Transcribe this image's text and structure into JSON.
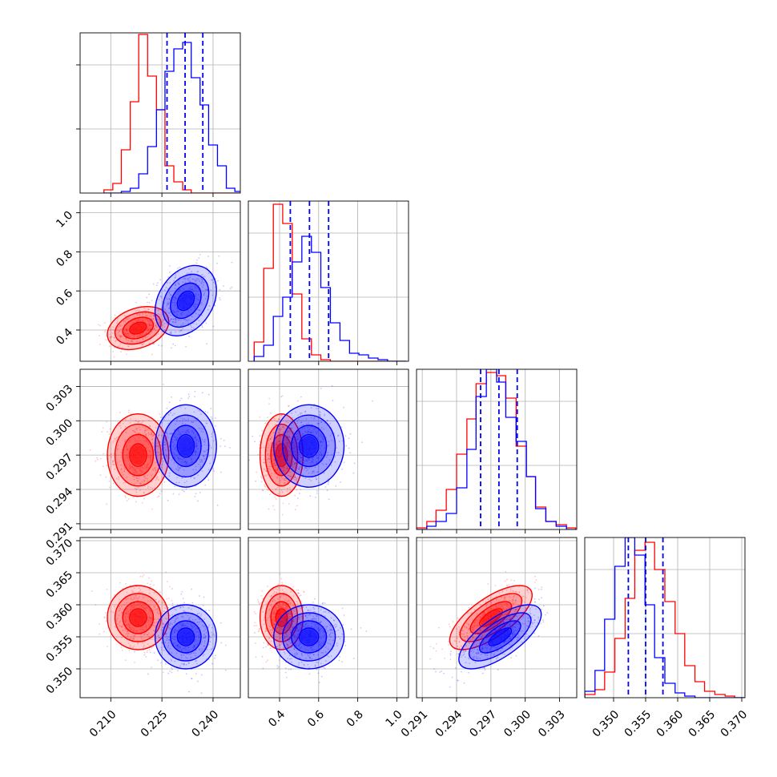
{
  "colors": {
    "series_a": "#ff0000",
    "series_b": "#0000ff",
    "grid": "#b0b0b0",
    "axes": "#000000"
  },
  "chart_data": {
    "type": "corner",
    "grid": true,
    "parameters": [
      {
        "ticks": [
          0.21,
          0.225,
          0.24
        ],
        "tick_labels": [
          "0.210",
          "0.225",
          "0.240"
        ],
        "range": [
          0.201,
          0.248
        ]
      },
      {
        "ticks": [
          0.4,
          0.6,
          0.8,
          1.0
        ],
        "tick_labels": [
          "0.4",
          "0.6",
          "0.8",
          "1.0"
        ],
        "range": [
          0.24,
          1.06
        ]
      },
      {
        "ticks": [
          0.291,
          0.294,
          0.297,
          0.3,
          0.303
        ],
        "tick_labels": [
          "0.291",
          "0.294",
          "0.297",
          "0.300",
          "0.303"
        ],
        "range": [
          0.2905,
          0.3045
        ]
      },
      {
        "ticks": [
          0.35,
          0.355,
          0.36,
          0.365,
          0.37
        ],
        "tick_labels": [
          "0.350",
          "0.355",
          "0.360",
          "0.365",
          "0.370"
        ],
        "range": [
          0.3455,
          0.3705
        ]
      }
    ],
    "series": [
      {
        "color": "red",
        "mean": [
          0.218,
          0.41,
          0.297,
          0.358
        ],
        "sd": [
          0.0045,
          0.055,
          0.0018,
          0.0025
        ],
        "corr": {
          "0-1": 0.3,
          "2-3": 0.7
        }
      },
      {
        "color": "blue",
        "mean": [
          0.232,
          0.55,
          0.2978,
          0.355
        ],
        "sd": [
          0.0045,
          0.09,
          0.0018,
          0.0025
        ],
        "corr": {
          "0-1": 0.3,
          "2-3": 0.7
        },
        "quantiles": [
          [
            0.2265,
            0.2318,
            0.237
          ],
          [
            0.455,
            0.553,
            0.651
          ],
          [
            0.2961,
            0.2977,
            0.2993
          ],
          [
            0.3523,
            0.355,
            0.3577
          ]
        ]
      }
    ],
    "histograms": [
      {
        "bins": [
          0.208,
          0.2106,
          0.2131,
          0.2157,
          0.2182,
          0.2208,
          0.2234,
          0.2259,
          0.2285,
          0.2311,
          0.2336,
          0.2362,
          0.2387,
          0.2413,
          0.2439,
          0.2464,
          0.249
        ],
        "counts": {
          "red": [
            0.02,
            0.06,
            0.27,
            0.57,
            0.99,
            0.73,
            0.52,
            0.17,
            0.07,
            0.02,
            0,
            0,
            0,
            0,
            0,
            0
          ],
          "blue": [
            0,
            0,
            0.01,
            0.03,
            0.12,
            0.29,
            0.52,
            0.76,
            0.9,
            0.94,
            0.72,
            0.55,
            0.3,
            0.17,
            0.03,
            0.01
          ]
        }
      },
      {
        "bins": [
          0.27,
          0.319,
          0.368,
          0.416,
          0.465,
          0.514,
          0.563,
          0.611,
          0.66,
          0.709,
          0.758,
          0.806,
          0.855,
          0.904,
          0.953,
          1.001,
          1.05
        ],
        "counts": {
          "red": [
            0.12,
            0.58,
            0.98,
            0.86,
            0.42,
            0.14,
            0.04,
            0.01,
            0,
            0,
            0,
            0,
            0,
            0,
            0,
            0
          ],
          "blue": [
            0.03,
            0.1,
            0.28,
            0.4,
            0.62,
            0.78,
            0.68,
            0.46,
            0.24,
            0.13,
            0.05,
            0.04,
            0.02,
            0.01,
            0,
            0
          ]
        }
      },
      {
        "bins": [
          0.2905,
          0.2914,
          0.2922,
          0.2931,
          0.294,
          0.2949,
          0.2957,
          0.2966,
          0.2975,
          0.2983,
          0.2992,
          0.3001,
          0.3009,
          0.3018,
          0.3027,
          0.3036,
          0.3044
        ],
        "counts": {
          "red": [
            0.01,
            0.05,
            0.12,
            0.25,
            0.47,
            0.69,
            0.91,
            0.98,
            0.96,
            0.82,
            0.52,
            0.33,
            0.14,
            0.05,
            0.03,
            0.01
          ],
          "blue": [
            0,
            0.02,
            0.05,
            0.1,
            0.26,
            0.5,
            0.83,
            1.0,
            0.92,
            0.7,
            0.55,
            0.33,
            0.13,
            0.05,
            0.02,
            0
          ]
        }
      },
      {
        "bins": [
          0.3455,
          0.3471,
          0.3486,
          0.3502,
          0.3518,
          0.3533,
          0.3549,
          0.3564,
          0.358,
          0.3596,
          0.3611,
          0.3627,
          0.3642,
          0.3658,
          0.3674,
          0.3689,
          0.3705
        ],
        "counts": {
          "red": [
            0.02,
            0.05,
            0.16,
            0.37,
            0.62,
            0.92,
            0.97,
            0.8,
            0.6,
            0.4,
            0.2,
            0.1,
            0.04,
            0.02,
            0.01,
            0
          ],
          "blue": [
            0.04,
            0.17,
            0.49,
            0.82,
            1.0,
            0.89,
            0.58,
            0.25,
            0.09,
            0.03,
            0.01,
            0,
            0,
            0,
            0,
            0
          ]
        }
      }
    ]
  }
}
